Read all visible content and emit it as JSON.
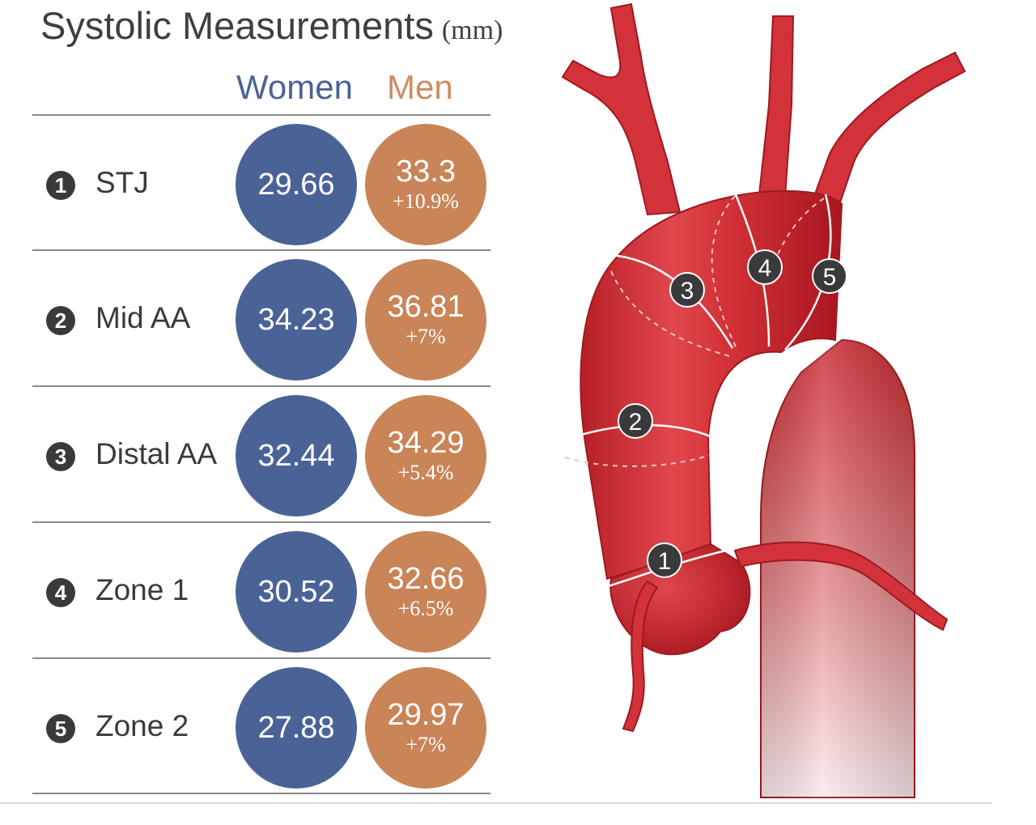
{
  "title": "Systolic Measurements",
  "unit": "(mm)",
  "columns": {
    "women": "Women",
    "men": "Men"
  },
  "colors": {
    "women": "#4a6397",
    "men": "#c98457",
    "aorta": "#d7333a",
    "badge": "#3a3a3a"
  },
  "rows": [
    {
      "number": "1",
      "label": "STJ",
      "women": "29.66",
      "men": "33.3",
      "diff": "+10.9%"
    },
    {
      "number": "2",
      "label": "Mid AA",
      "women": "34.23",
      "men": "36.81",
      "diff": "+7%"
    },
    {
      "number": "3",
      "label": "Distal AA",
      "women": "32.44",
      "men": "34.29",
      "diff": "+5.4%"
    },
    {
      "number": "4",
      "label": "Zone 1",
      "women": "30.52",
      "men": "32.66",
      "diff": "+6.5%"
    },
    {
      "number": "5",
      "label": "Zone 2",
      "women": "27.88",
      "men": "29.97",
      "diff": "+7%"
    }
  ],
  "markers": [
    "1",
    "2",
    "3",
    "4",
    "5"
  ]
}
